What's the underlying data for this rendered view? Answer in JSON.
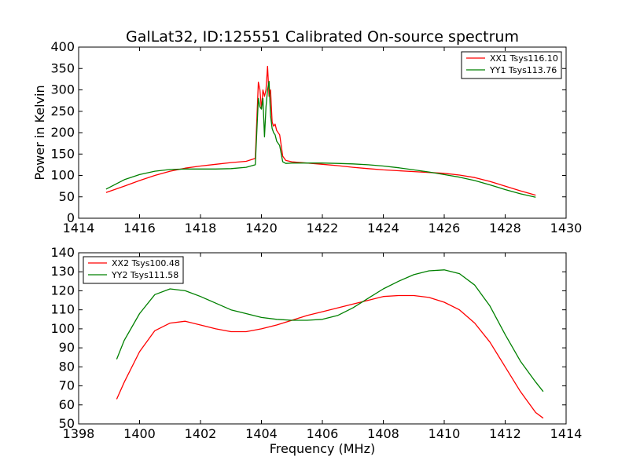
{
  "figure": {
    "title": "GalLat32, ID:125551 Calibrated On-source spectrum",
    "colors": {
      "red": "#ff0000",
      "green": "#008000"
    }
  },
  "chart_data": [
    {
      "type": "line",
      "title": "GalLat32, ID:125551 Calibrated On-source spectrum",
      "xlabel": "",
      "ylabel": "Power in Kelvin",
      "xlim": [
        1414,
        1430
      ],
      "ylim": [
        0,
        400
      ],
      "xticks": [
        "1414",
        "1416",
        "1418",
        "1420",
        "1422",
        "1424",
        "1426",
        "1428",
        "1430"
      ],
      "yticks": [
        "0",
        "50",
        "100",
        "150",
        "200",
        "250",
        "300",
        "350",
        "400"
      ],
      "grid": false,
      "legend_position": "top-right",
      "series": [
        {
          "name": "XX1 Tsys116.10",
          "color": "#ff0000",
          "x": [
            1414.9,
            1415.5,
            1416,
            1416.5,
            1417,
            1417.5,
            1418,
            1418.5,
            1419,
            1419.5,
            1419.8,
            1419.9,
            1419.95,
            1420.0,
            1420.05,
            1420.1,
            1420.15,
            1420.2,
            1420.25,
            1420.3,
            1420.35,
            1420.4,
            1420.45,
            1420.5,
            1420.6,
            1420.7,
            1420.8,
            1421,
            1421.5,
            1422,
            1422.5,
            1423,
            1423.5,
            1424,
            1424.5,
            1425,
            1425.5,
            1426,
            1426.5,
            1427,
            1427.5,
            1428,
            1428.5,
            1429
          ],
          "y": [
            60,
            75,
            88,
            100,
            110,
            117,
            122,
            126,
            130,
            133,
            140,
            318,
            300,
            255,
            300,
            285,
            300,
            355,
            285,
            300,
            225,
            215,
            220,
            205,
            195,
            145,
            135,
            132,
            129,
            126,
            123,
            119,
            116,
            113,
            111,
            109,
            107,
            105,
            101,
            95,
            86,
            75,
            64,
            54
          ]
        },
        {
          "name": "YY1 Tsys113.76",
          "color": "#008000",
          "x": [
            1414.9,
            1415.5,
            1416,
            1416.5,
            1417,
            1417.5,
            1418,
            1418.5,
            1419,
            1419.5,
            1419.8,
            1419.9,
            1419.95,
            1420.0,
            1420.05,
            1420.1,
            1420.15,
            1420.2,
            1420.25,
            1420.3,
            1420.35,
            1420.4,
            1420.45,
            1420.5,
            1420.6,
            1420.7,
            1420.8,
            1421,
            1421.5,
            1422,
            1422.5,
            1423,
            1423.5,
            1424,
            1424.5,
            1425,
            1425.5,
            1426,
            1426.5,
            1427,
            1427.5,
            1428,
            1428.5,
            1429
          ],
          "y": [
            68,
            90,
            102,
            110,
            114,
            115,
            115,
            115,
            116,
            119,
            125,
            280,
            260,
            255,
            280,
            190,
            260,
            300,
            320,
            240,
            210,
            200,
            195,
            180,
            170,
            132,
            128,
            129,
            129,
            129,
            128,
            127,
            125,
            122,
            118,
            113,
            108,
            102,
            96,
            88,
            78,
            67,
            57,
            49
          ]
        }
      ]
    },
    {
      "type": "line",
      "title": "",
      "xlabel": "Frequency (MHz)",
      "ylabel": "",
      "xlim": [
        1398,
        1414
      ],
      "ylim": [
        50,
        140
      ],
      "xticks": [
        "1398",
        "1400",
        "1402",
        "1404",
        "1406",
        "1408",
        "1410",
        "1412",
        "1414"
      ],
      "yticks": [
        "50",
        "60",
        "70",
        "80",
        "90",
        "100",
        "110",
        "120",
        "130",
        "140"
      ],
      "grid": false,
      "legend_position": "top-left",
      "series": [
        {
          "name": "XX2 Tsys100.48",
          "color": "#ff0000",
          "x": [
            1399.25,
            1399.5,
            1400,
            1400.5,
            1401,
            1401.5,
            1402,
            1402.5,
            1403,
            1403.5,
            1404,
            1404.5,
            1405,
            1405.5,
            1406,
            1406.5,
            1407,
            1407.5,
            1408,
            1408.5,
            1409,
            1409.5,
            1410,
            1410.5,
            1411,
            1411.5,
            1412,
            1412.5,
            1413,
            1413.25
          ],
          "y": [
            63,
            72,
            88,
            99,
            103,
            104,
            102,
            100,
            98.5,
            98.5,
            100,
            102,
            104.5,
            107,
            109,
            111,
            113,
            115,
            117,
            117.5,
            117.5,
            116.5,
            114,
            110,
            103,
            93,
            80,
            67,
            56,
            53
          ]
        },
        {
          "name": "YY2 Tsys111.58",
          "color": "#008000",
          "x": [
            1399.25,
            1399.5,
            1400,
            1400.5,
            1401,
            1401.5,
            1402,
            1402.5,
            1403,
            1403.5,
            1404,
            1404.5,
            1405,
            1405.5,
            1406,
            1406.5,
            1407,
            1407.5,
            1408,
            1408.5,
            1409,
            1409.5,
            1410,
            1410.5,
            1411,
            1411.5,
            1412,
            1412.5,
            1413,
            1413.25
          ],
          "y": [
            84,
            94,
            108,
            118,
            121,
            120,
            117,
            113.5,
            110,
            108,
            106,
            105,
            104.5,
            104.5,
            105,
            107,
            111,
            116,
            121,
            125,
            128.5,
            130.5,
            131,
            129,
            123,
            112,
            97,
            83,
            72,
            67
          ]
        }
      ]
    }
  ]
}
